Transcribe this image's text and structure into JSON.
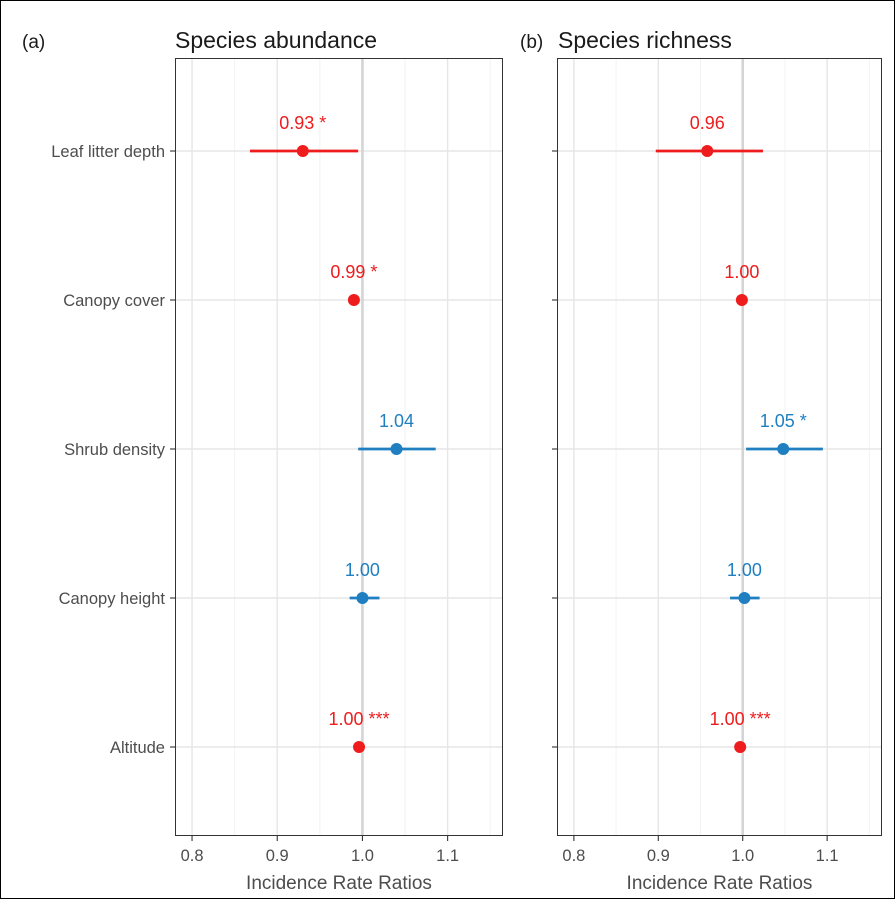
{
  "chart_data": [
    {
      "type": "forest",
      "panel_tag": "(a)",
      "title": "Species abundance",
      "xlabel": "Incidence Rate Ratios",
      "xlim": [
        0.78,
        1.165
      ],
      "xticks": [
        0.8,
        0.9,
        1.0,
        1.1
      ],
      "xtick_labels": [
        "0.8",
        "0.9",
        "1.0",
        "1.1"
      ],
      "reference_line": 1.0,
      "grid": true,
      "categories": [
        "Leaf litter depth",
        "Canopy cover",
        "Shrub density",
        "Canopy height",
        "Altitude"
      ],
      "points": [
        {
          "variable": "Leaf litter depth",
          "estimate": 0.93,
          "ci_low": 0.868,
          "ci_high": 0.995,
          "label": "0.93 *",
          "direction": "negative"
        },
        {
          "variable": "Canopy cover",
          "estimate": 0.99,
          "ci_low": 0.986,
          "ci_high": 0.994,
          "label": "0.99 *",
          "direction": "negative"
        },
        {
          "variable": "Shrub density",
          "estimate": 1.04,
          "ci_low": 0.995,
          "ci_high": 1.086,
          "label": "1.04",
          "direction": "positive"
        },
        {
          "variable": "Canopy height",
          "estimate": 1.0,
          "ci_low": 0.985,
          "ci_high": 1.02,
          "label": "1.00",
          "direction": "positive"
        },
        {
          "variable": "Altitude",
          "estimate": 0.996,
          "ci_low": 0.994,
          "ci_high": 0.998,
          "label": "1.00 ***",
          "direction": "negative"
        }
      ]
    },
    {
      "type": "forest",
      "panel_tag": "(b)",
      "title": "Species richness",
      "xlabel": "Incidence Rate Ratios",
      "xlim": [
        0.78,
        1.165
      ],
      "xticks": [
        0.8,
        0.9,
        1.0,
        1.1
      ],
      "xtick_labels": [
        "0.8",
        "0.9",
        "1.0",
        "1.1"
      ],
      "reference_line": 1.0,
      "grid": true,
      "categories": [
        "Leaf litter depth",
        "Canopy cover",
        "Shrub density",
        "Canopy height",
        "Altitude"
      ],
      "points": [
        {
          "variable": "Leaf litter depth",
          "estimate": 0.958,
          "ci_low": 0.897,
          "ci_high": 1.024,
          "label": "0.96",
          "direction": "negative"
        },
        {
          "variable": "Canopy cover",
          "estimate": 0.999,
          "ci_low": 0.996,
          "ci_high": 1.002,
          "label": "1.00",
          "direction": "negative"
        },
        {
          "variable": "Shrub density",
          "estimate": 1.048,
          "ci_low": 1.004,
          "ci_high": 1.095,
          "label": "1.05 *",
          "direction": "positive"
        },
        {
          "variable": "Canopy height",
          "estimate": 1.002,
          "ci_low": 0.985,
          "ci_high": 1.02,
          "label": "1.00",
          "direction": "positive"
        },
        {
          "variable": "Altitude",
          "estimate": 0.997,
          "ci_low": 0.995,
          "ci_high": 0.999,
          "label": "1.00 ***",
          "direction": "negative"
        }
      ]
    }
  ],
  "colors": {
    "negative": "#ee1c1c",
    "positive": "#1f7fc0",
    "grid_major": "#e6e6e6",
    "grid_minor": "#f2f2f2",
    "reference": "#d4d4d4",
    "axis_text": "#4d4d4d",
    "title_text": "#1a1a1a"
  }
}
